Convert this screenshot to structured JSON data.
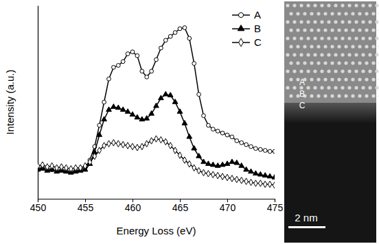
{
  "chart_data": {
    "type": "line",
    "x_label": "Energy Loss (eV)",
    "y_label": "Intensity (a.u.)",
    "x": [
      450,
      450.5,
      451,
      451.5,
      452,
      452.5,
      453,
      453.5,
      454,
      454.5,
      455,
      455.5,
      456,
      456.5,
      457,
      457.5,
      458,
      458.5,
      459,
      459.5,
      460,
      460.5,
      461,
      461.5,
      462,
      462.5,
      463,
      463.5,
      464,
      464.5,
      465,
      465.5,
      466,
      466.5,
      467,
      467.5,
      468,
      468.5,
      469,
      469.5,
      470,
      470.5,
      471,
      471.5,
      472,
      472.5,
      473,
      473.5,
      474,
      474.5,
      475
    ],
    "series": [
      {
        "name": "A",
        "color": "#000000",
        "marker": "circle-open",
        "line_style": "solid",
        "values": [
          1.55,
          1.6,
          1.55,
          1.5,
          1.45,
          1.5,
          1.45,
          1.4,
          1.45,
          1.5,
          1.6,
          2.0,
          2.7,
          3.8,
          5.0,
          6.2,
          6.8,
          6.9,
          7.1,
          7.5,
          7.6,
          7.4,
          6.6,
          6.3,
          6.6,
          7.2,
          7.8,
          8.2,
          8.4,
          8.6,
          8.8,
          8.85,
          8.3,
          7.0,
          5.4,
          4.3,
          3.8,
          3.6,
          3.5,
          3.4,
          3.3,
          3.2,
          3.0,
          2.9,
          2.8,
          2.7,
          2.6,
          2.55,
          2.5,
          2.45,
          2.45
        ]
      },
      {
        "name": "B",
        "color": "#000000",
        "marker": "triangle",
        "line_style": "solid",
        "values": [
          1.5,
          1.55,
          1.45,
          1.5,
          1.4,
          1.45,
          1.4,
          1.35,
          1.4,
          1.45,
          1.5,
          1.8,
          2.4,
          3.3,
          4.1,
          4.6,
          4.75,
          4.7,
          4.6,
          4.5,
          4.35,
          4.2,
          4.1,
          4.15,
          4.4,
          4.8,
          5.2,
          5.4,
          5.35,
          5.0,
          4.5,
          3.9,
          3.2,
          2.6,
          2.2,
          1.9,
          1.8,
          1.75,
          1.7,
          1.75,
          1.8,
          1.9,
          1.85,
          1.7,
          1.5,
          1.4,
          1.3,
          1.25,
          1.2,
          1.15,
          1.1
        ]
      },
      {
        "name": "C",
        "color": "#000000",
        "marker": "diamond-open",
        "line_style": "solid",
        "values": [
          1.7,
          1.75,
          1.65,
          1.7,
          1.6,
          1.65,
          1.6,
          1.55,
          1.6,
          1.6,
          1.7,
          1.9,
          2.2,
          2.5,
          2.75,
          2.85,
          2.9,
          2.85,
          2.8,
          2.75,
          2.7,
          2.65,
          2.7,
          2.85,
          3.0,
          3.1,
          3.05,
          2.95,
          2.75,
          2.5,
          2.25,
          2.0,
          1.8,
          1.6,
          1.45,
          1.35,
          1.3,
          1.25,
          1.2,
          1.15,
          1.1,
          1.05,
          1.0,
          0.95,
          0.9,
          0.85,
          0.8,
          0.8,
          0.75,
          0.75,
          0.7
        ]
      }
    ],
    "xlim": [
      450,
      475
    ],
    "xticks": [
      450,
      455,
      460,
      465,
      470,
      475
    ],
    "ylim": [
      0,
      10
    ],
    "tick_labels": "x",
    "legend": "top-right",
    "grid": false,
    "annotations": [
      "A",
      "B",
      "C",
      "2 nm"
    ]
  }
}
